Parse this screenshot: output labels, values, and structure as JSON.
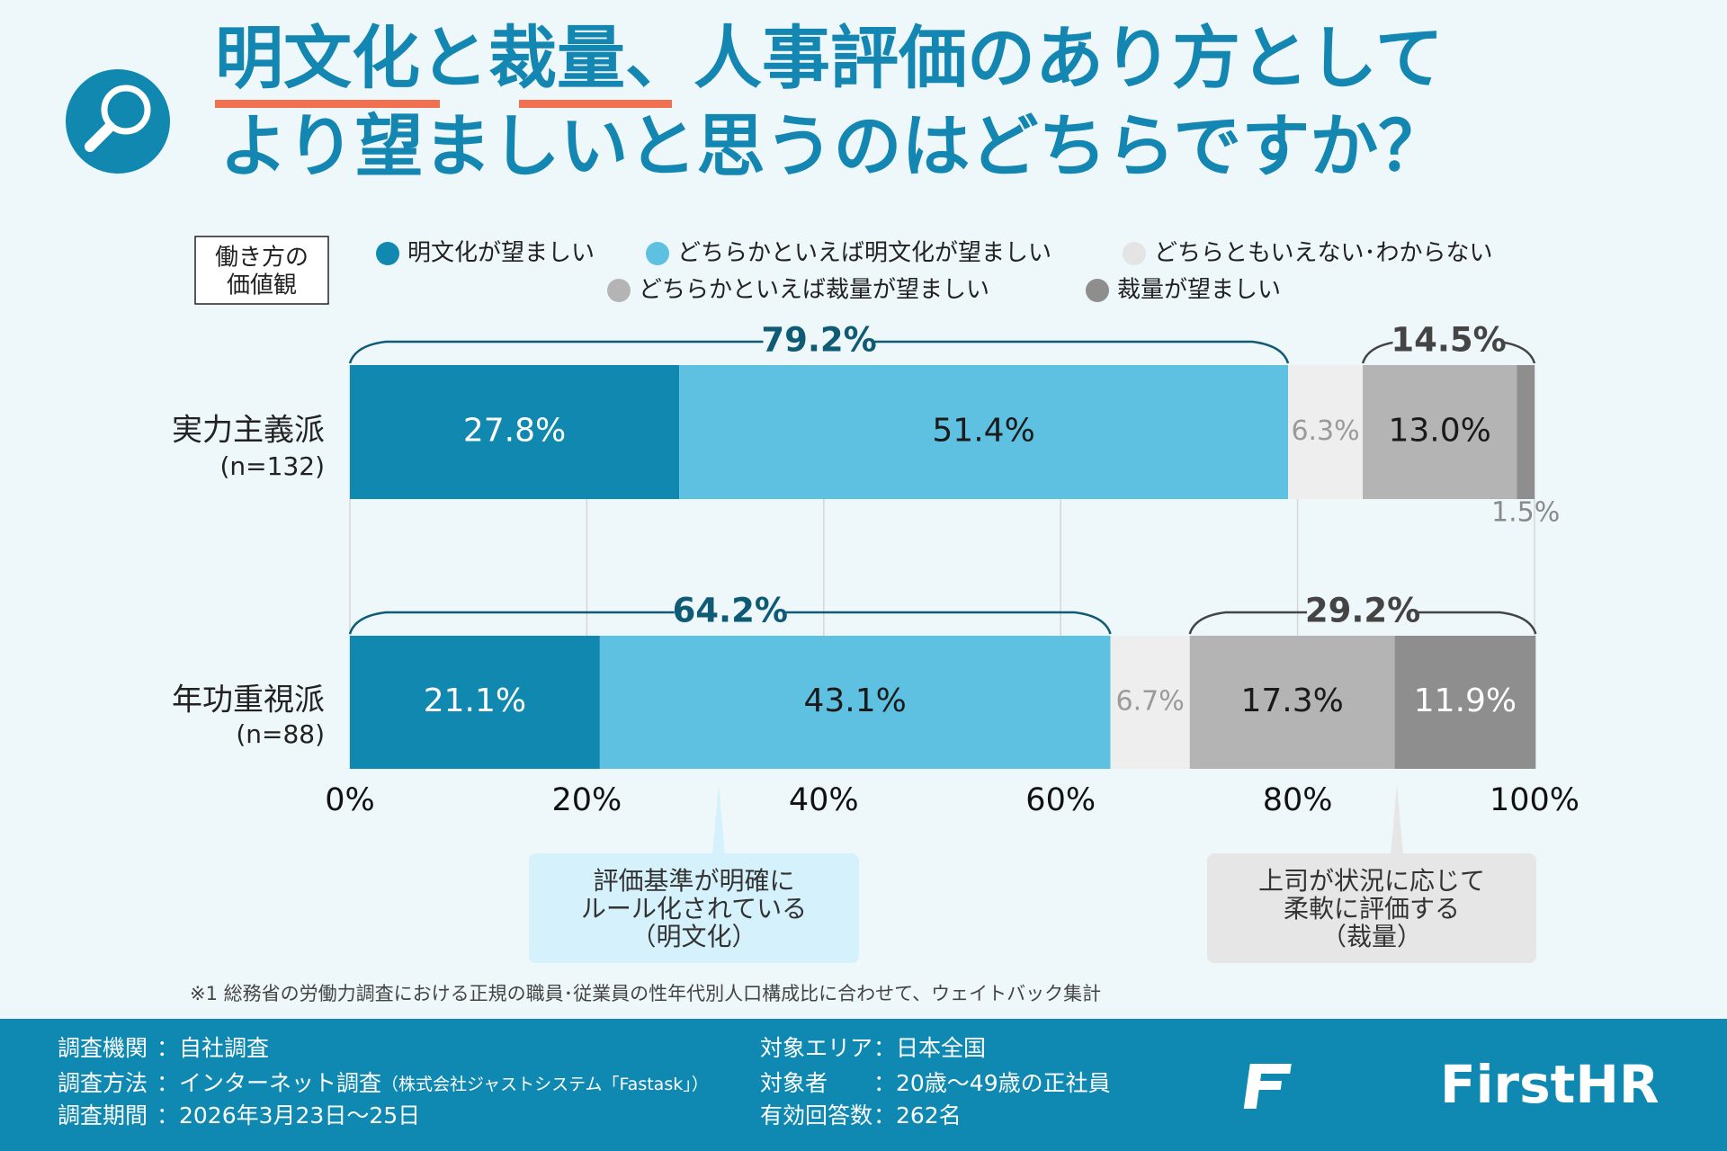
{
  "chart_data": {
    "type": "bar",
    "orientation": "horizontal",
    "stacked": true,
    "title": [
      "明文化と裁量、人事評価のあり方として",
      "より望ましいと思うのはどちらですか？"
    ],
    "legend_title": [
      "働き方の",
      "価値観"
    ],
    "categories": [
      "実力主義派",
      "年功重視派"
    ],
    "sample_sizes": [
      "(n=132)",
      "(n=88)"
    ],
    "series": [
      {
        "name": "明文化が望ましい",
        "color": "#1188b0",
        "label_color": "#ffffff",
        "values": [
          27.8,
          21.1
        ],
        "value_labels": [
          "27.8%",
          "21.1%"
        ]
      },
      {
        "name": "どちらかといえば明文化が望ましい",
        "color": "#5fc1e1",
        "label_color": "#1a1a1a",
        "values": [
          51.4,
          43.1
        ],
        "value_labels": [
          "51.4%",
          "43.1%"
        ]
      },
      {
        "name": "どちらともいえない･わからない",
        "color": "#eeeeee",
        "label_color": "#9a9a9a",
        "values": [
          6.3,
          6.7
        ],
        "value_labels": [
          "6.3%",
          "6.7%"
        ]
      },
      {
        "name": "どちらかといえば裁量が望ましい",
        "color": "#b4b4b4",
        "label_color": "#1a1a1a",
        "values": [
          13.0,
          17.3
        ],
        "value_labels": [
          "13.0%",
          "17.3%"
        ]
      },
      {
        "name": "裁量が望ましい",
        "color": "#8e8e8e",
        "label_color": "#ffffff",
        "values": [
          1.5,
          11.9
        ],
        "value_labels": [
          "1.5%",
          "11.9%"
        ]
      }
    ],
    "group_totals": [
      [
        {
          "value": 79.2,
          "label": "79.2%"
        },
        {
          "value": 14.5,
          "label": "14.5%"
        }
      ],
      [
        {
          "value": 64.2,
          "label": "64.2%"
        },
        {
          "value": 29.2,
          "label": "29.2%"
        }
      ]
    ],
    "xlim": [
      0,
      100
    ],
    "xticks": [
      {
        "value": 0,
        "label": "0%"
      },
      {
        "value": 20,
        "label": "20%"
      },
      {
        "value": 40,
        "label": "40%"
      },
      {
        "value": 60,
        "label": "60%"
      },
      {
        "value": 80,
        "label": "80%"
      },
      {
        "value": 100,
        "label": "100%"
      }
    ],
    "grid": true,
    "annotations": [
      [
        "評価基準が明確に",
        "ルール化されている",
        "（明文化）"
      ],
      [
        "上司が状況に応じて",
        "柔軟に評価する",
        "（裁量）"
      ]
    ],
    "footnote": "※1 総務省の労働力調査における正規の職員･従業員の性年代別人口構成比に合わせて、ウェイトバック集計"
  },
  "footer": {
    "left": [
      {
        "label": "調査機関",
        "value": "：自社調査"
      },
      {
        "label": "調査方法",
        "value": "：インターネット調査",
        "note": "（株式会社ジャストシステム「Fastask」）"
      },
      {
        "label": "調査期間",
        "value": "：2026年3月23日～25日"
      }
    ],
    "right": [
      {
        "label": "対象エリア",
        "value": "：日本全国"
      },
      {
        "label": "対象者",
        "value": "：20歳～49歳の正社員"
      },
      {
        "label": "有効回答数",
        "value": "：262名"
      }
    ],
    "brand": "FirstHR"
  }
}
